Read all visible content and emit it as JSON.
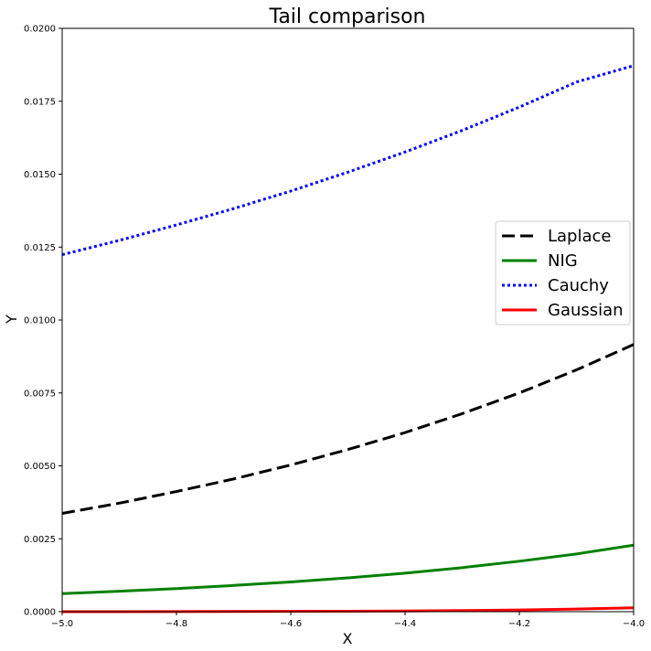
{
  "chart_data": {
    "type": "line",
    "title": "Tail comparison",
    "xlabel": "X",
    "ylabel": "Y",
    "xlim": [
      -5.0,
      -4.0
    ],
    "ylim": [
      0.0,
      0.02
    ],
    "xticks": [
      "−5.0",
      "−4.8",
      "−4.6",
      "−4.4",
      "−4.2",
      "−4.0"
    ],
    "xtick_values": [
      -5.0,
      -4.8,
      -4.6,
      -4.4,
      -4.2,
      -4.0
    ],
    "yticks": [
      "0.0000",
      "0.0025",
      "0.0050",
      "0.0075",
      "0.0100",
      "0.0125",
      "0.0150",
      "0.0175",
      "0.0200"
    ],
    "ytick_values": [
      0.0,
      0.0025,
      0.005,
      0.0075,
      0.01,
      0.0125,
      0.015,
      0.0175,
      0.02
    ],
    "grid": false,
    "legend_position": "center-right",
    "x": [
      -5.0,
      -4.9,
      -4.8,
      -4.7,
      -4.6,
      -4.5,
      -4.4,
      -4.3,
      -4.2,
      -4.1,
      -4.0
    ],
    "series": [
      {
        "name": "Laplace",
        "color": "#000000",
        "style": "dashed",
        "values": [
          0.00337,
          0.00372,
          0.00412,
          0.00455,
          0.00503,
          0.00556,
          0.00614,
          0.00679,
          0.0075,
          0.00829,
          0.00916
        ]
      },
      {
        "name": "NIG",
        "color": "#008000",
        "style": "solid",
        "values": [
          0.00062,
          0.0007,
          0.00079,
          0.0009,
          0.00102,
          0.00116,
          0.00132,
          0.00151,
          0.00173,
          0.00198,
          0.00228
        ]
      },
      {
        "name": "Cauchy",
        "color": "#0000ff",
        "style": "dotted",
        "values": [
          0.01224,
          0.01273,
          0.01326,
          0.01382,
          0.01442,
          0.01507,
          0.01576,
          0.0165,
          0.0173,
          0.01816,
          0.01872
        ]
      },
      {
        "name": "Gaussian",
        "color": "#ff0000",
        "style": "solid",
        "values": [
          1e-06,
          2e-06,
          4e-06,
          6e-06,
          1e-05,
          1.6e-05,
          2.5e-05,
          3.9e-05,
          5.9e-05,
          8.9e-05,
          0.000134
        ]
      }
    ]
  }
}
